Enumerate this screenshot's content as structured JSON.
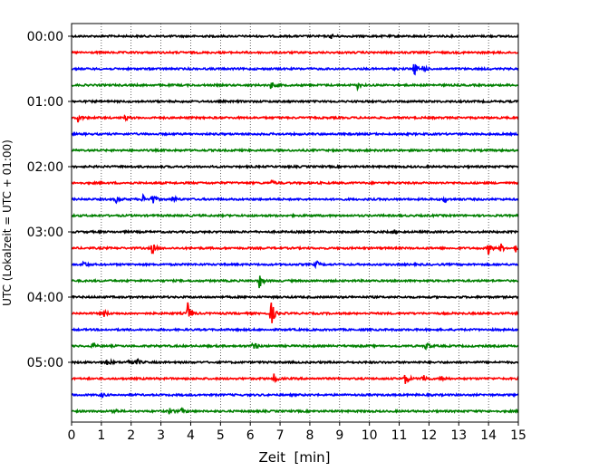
{
  "chart_data": {
    "type": "line",
    "title": "",
    "xlabel": "Zeit  [min]",
    "ylabel": "UTC (Lokalzeit = UTC + 01:00)",
    "xlim": [
      0,
      15
    ],
    "x_ticks": [
      0,
      1,
      2,
      3,
      4,
      5,
      6,
      7,
      8,
      9,
      10,
      11,
      12,
      13,
      14,
      15
    ],
    "x_tick_labels": [
      "0",
      "1",
      "2",
      "3",
      "4",
      "5",
      "6",
      "7",
      "8",
      "9",
      "10",
      "11",
      "12",
      "13",
      "14",
      "15"
    ],
    "y_ticks": [
      "00:00",
      "01:00",
      "02:00",
      "03:00",
      "04:00",
      "05:00"
    ],
    "grid": "vertical dotted at each minute",
    "trace_interval_minutes": 15,
    "colors": [
      "#000000",
      "#ff0000",
      "#0000ff",
      "#008000"
    ],
    "series": [
      {
        "start": "00:00",
        "color": "#000000",
        "events": [
          [
            8.7,
            0.3
          ]
        ]
      },
      {
        "start": "00:15",
        "color": "#ff0000",
        "events": []
      },
      {
        "start": "00:30",
        "color": "#0000ff",
        "events": [
          [
            11.5,
            0.8
          ],
          [
            11.8,
            0.5
          ]
        ]
      },
      {
        "start": "00:45",
        "color": "#008000",
        "events": [
          [
            6.7,
            0.5
          ],
          [
            9.6,
            0.4
          ]
        ]
      },
      {
        "start": "01:00",
        "color": "#000000",
        "events": []
      },
      {
        "start": "01:15",
        "color": "#ff0000",
        "events": [
          [
            0.2,
            0.6
          ],
          [
            1.8,
            0.3
          ]
        ]
      },
      {
        "start": "01:30",
        "color": "#0000ff",
        "events": []
      },
      {
        "start": "01:45",
        "color": "#008000",
        "events": []
      },
      {
        "start": "02:00",
        "color": "#000000",
        "events": []
      },
      {
        "start": "02:15",
        "color": "#ff0000",
        "events": [
          [
            6.7,
            0.3
          ]
        ]
      },
      {
        "start": "02:30",
        "color": "#0000ff",
        "events": [
          [
            1.5,
            0.4
          ],
          [
            2.4,
            0.6
          ],
          [
            2.7,
            0.8
          ],
          [
            3.4,
            0.5
          ],
          [
            12.5,
            0.4
          ]
        ]
      },
      {
        "start": "02:45",
        "color": "#008000",
        "events": []
      },
      {
        "start": "03:00",
        "color": "#000000",
        "events": [
          [
            10.8,
            0.3
          ]
        ]
      },
      {
        "start": "03:15",
        "color": "#ff0000",
        "events": [
          [
            2.7,
            0.8
          ],
          [
            14.0,
            0.8
          ],
          [
            14.4,
            0.6
          ],
          [
            14.9,
            0.5
          ]
        ]
      },
      {
        "start": "03:30",
        "color": "#0000ff",
        "events": [
          [
            0.4,
            0.5
          ],
          [
            8.2,
            0.5
          ]
        ]
      },
      {
        "start": "03:45",
        "color": "#008000",
        "events": [
          [
            6.3,
            1.0
          ]
        ]
      },
      {
        "start": "04:00",
        "color": "#000000",
        "events": []
      },
      {
        "start": "04:15",
        "color": "#ff0000",
        "events": [
          [
            1.1,
            0.4
          ],
          [
            3.9,
            1.4
          ],
          [
            6.7,
            1.8
          ]
        ]
      },
      {
        "start": "04:30",
        "color": "#0000ff",
        "events": []
      },
      {
        "start": "04:45",
        "color": "#008000",
        "events": [
          [
            0.7,
            0.4
          ],
          [
            6.1,
            0.8
          ],
          [
            11.9,
            0.6
          ]
        ]
      },
      {
        "start": "05:00",
        "color": "#000000",
        "events": [
          [
            1.2,
            0.5
          ],
          [
            1.9,
            0.6
          ],
          [
            2.2,
            0.4
          ]
        ]
      },
      {
        "start": "05:15",
        "color": "#ff0000",
        "events": [
          [
            6.8,
            0.6
          ],
          [
            11.2,
            1.0
          ],
          [
            11.8,
            0.8
          ],
          [
            12.4,
            0.5
          ]
        ]
      },
      {
        "start": "05:30",
        "color": "#0000ff",
        "events": [
          [
            1.0,
            0.3
          ]
        ]
      },
      {
        "start": "05:45",
        "color": "#008000",
        "events": [
          [
            1.4,
            0.4
          ],
          [
            3.3,
            0.5
          ],
          [
            3.7,
            0.4
          ]
        ]
      }
    ]
  }
}
